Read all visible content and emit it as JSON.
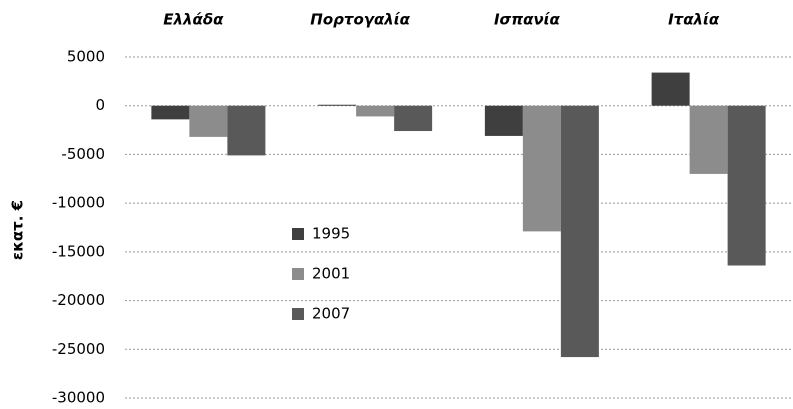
{
  "chart_data": {
    "type": "bar",
    "y_label": "εκατ. €",
    "categories": [
      "Ελλάδα",
      "Πορτογαλία",
      "Ισπανία",
      "Ιταλία"
    ],
    "series": [
      {
        "name": "1995",
        "color": "#3f3f3f",
        "values": [
          -1400,
          100,
          -3100,
          3400
        ]
      },
      {
        "name": "2001",
        "color": "#8c8c8c",
        "values": [
          -3200,
          -1100,
          -12900,
          -7000
        ]
      },
      {
        "name": "2007",
        "color": "#595959",
        "values": [
          -5100,
          -2600,
          -25800,
          -16400
        ]
      }
    ],
    "ylim": [
      -30000,
      5000
    ],
    "yticks": [
      -30000,
      -25000,
      -20000,
      -15000,
      -10000,
      -5000,
      0,
      5000
    ],
    "grid": true,
    "legend_position": "center-left"
  }
}
